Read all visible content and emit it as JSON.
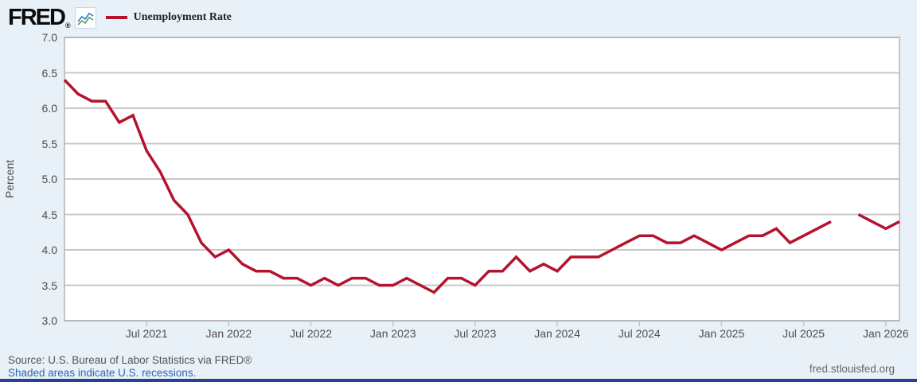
{
  "header": {
    "logo_text": "FRED",
    "logo_reg": "®",
    "icon": "fred-sparkline-icon"
  },
  "legend": {
    "label": "Unemployment Rate"
  },
  "chart_data": {
    "type": "line",
    "title": "Unemployment Rate",
    "ylabel": "Percent",
    "ylim": [
      3.0,
      7.0
    ],
    "grid": true,
    "legend_position": "top-left",
    "frequency": "monthly",
    "x_start": "Jan 2021",
    "x_end": "Feb 2026",
    "gap_note": "no data point for Oct 2025 (line break)",
    "months": [
      "2021-01",
      "2021-02",
      "2021-03",
      "2021-04",
      "2021-05",
      "2021-06",
      "2021-07",
      "2021-08",
      "2021-09",
      "2021-10",
      "2021-11",
      "2021-12",
      "2022-01",
      "2022-02",
      "2022-03",
      "2022-04",
      "2022-05",
      "2022-06",
      "2022-07",
      "2022-08",
      "2022-09",
      "2022-10",
      "2022-11",
      "2022-12",
      "2023-01",
      "2023-02",
      "2023-03",
      "2023-04",
      "2023-05",
      "2023-06",
      "2023-07",
      "2023-08",
      "2023-09",
      "2023-10",
      "2023-11",
      "2023-12",
      "2024-01",
      "2024-02",
      "2024-03",
      "2024-04",
      "2024-05",
      "2024-06",
      "2024-07",
      "2024-08",
      "2024-09",
      "2024-10",
      "2024-11",
      "2024-12",
      "2025-01",
      "2025-02",
      "2025-03",
      "2025-04",
      "2025-05",
      "2025-06",
      "2025-07",
      "2025-08",
      "2025-09",
      "2025-10",
      "2025-11",
      "2025-12",
      "2026-01",
      "2026-02"
    ],
    "values": [
      6.4,
      6.2,
      6.1,
      6.1,
      5.8,
      5.9,
      5.4,
      5.1,
      4.7,
      4.5,
      4.1,
      3.9,
      4.0,
      3.8,
      3.7,
      3.7,
      3.6,
      3.6,
      3.5,
      3.6,
      3.5,
      3.6,
      3.6,
      3.5,
      3.5,
      3.6,
      3.5,
      3.4,
      3.6,
      3.6,
      3.5,
      3.7,
      3.7,
      3.9,
      3.7,
      3.8,
      3.7,
      3.9,
      3.9,
      3.9,
      4.0,
      4.1,
      4.2,
      4.2,
      4.1,
      4.1,
      4.2,
      4.1,
      4.0,
      4.1,
      4.2,
      4.2,
      4.3,
      4.1,
      4.2,
      4.3,
      4.4,
      null,
      4.5,
      4.4,
      4.3,
      4.4
    ],
    "y_ticks": [
      {
        "value": 7.0,
        "label": "7.0"
      },
      {
        "value": 6.5,
        "label": "6.5"
      },
      {
        "value": 6.0,
        "label": "6.0"
      },
      {
        "value": 5.5,
        "label": "5.5"
      },
      {
        "value": 5.0,
        "label": "5.0"
      },
      {
        "value": 4.5,
        "label": "4.5"
      },
      {
        "value": 4.0,
        "label": "4.0"
      },
      {
        "value": 3.5,
        "label": "3.5"
      },
      {
        "value": 3.0,
        "label": "3.0"
      }
    ],
    "x_ticks": [
      {
        "label": "Jul 2021",
        "month_index": 6
      },
      {
        "label": "Jan 2022",
        "month_index": 12
      },
      {
        "label": "Jul 2022",
        "month_index": 18
      },
      {
        "label": "Jan 2023",
        "month_index": 24
      },
      {
        "label": "Jul 2023",
        "month_index": 30
      },
      {
        "label": "Jan 2024",
        "month_index": 36
      },
      {
        "label": "Jul 2024",
        "month_index": 42
      },
      {
        "label": "Jan 2025",
        "month_index": 48
      },
      {
        "label": "Jul 2025",
        "month_index": 54
      },
      {
        "label": "Jan 2026",
        "month_index": 60
      }
    ]
  },
  "footer": {
    "source": "Source: U.S. Bureau of Labor Statistics via FRED®",
    "recession_note": "Shaded areas indicate U.S. recessions.",
    "site_link": "fred.stlouisfed.org"
  },
  "colors": {
    "background": "#e9f1f8",
    "plot_background": "#ffffff",
    "line": "#b4132e",
    "gridline": "#c9c9c9",
    "frame": "#b3b3b3",
    "tick": "#b9c6da",
    "axis_text": "#4d4d4d",
    "link_blue": "#2c67ad",
    "footer_text": "#555555",
    "bottom_bar": "#25418f",
    "icon_blue": "#3b76bd",
    "icon_green": "#49a06c"
  }
}
